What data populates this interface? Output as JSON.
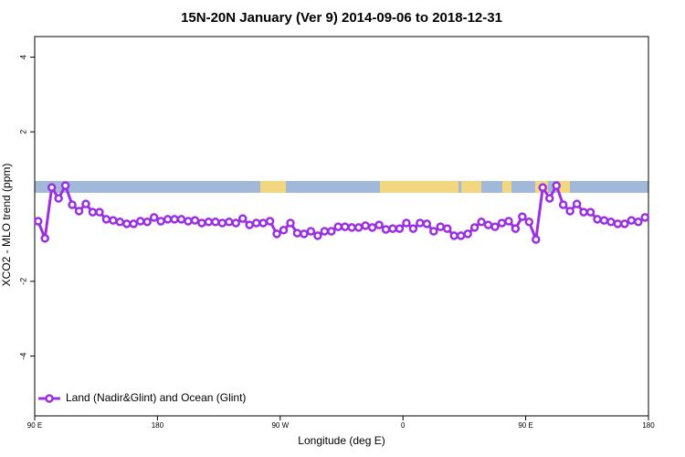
{
  "chart_data": {
    "type": "line",
    "title": "15N-20N January (Ver 9)   2014-09-06 to 2018-12-31",
    "x_label": "Longitude (deg E)",
    "y_label": "XCO2 - MLO trend (ppm)",
    "xlim": [
      90,
      540
    ],
    "ylim": [
      -5.6,
      4.55
    ],
    "xticks": [
      {
        "value": 90,
        "label": "90 E"
      },
      180,
      {
        "value": 270,
        "label": "90 W"
      },
      {
        "value": 360,
        "label": "0"
      },
      {
        "value": 450,
        "label": "90 E"
      },
      {
        "value": 540,
        "label": "180"
      }
    ],
    "yticks": [
      4,
      2,
      -2,
      -4
    ],
    "legend": "bottom-left",
    "x": [
      92.5,
      97.5,
      102.5,
      107.5,
      112.5,
      117.5,
      122.5,
      127.5,
      132.5,
      137.5,
      142.5,
      147.5,
      152.5,
      157.5,
      162.5,
      167.5,
      172.5,
      177.5,
      182.5,
      187.5,
      192.5,
      197.5,
      202.5,
      207.5,
      212.5,
      217.5,
      222.5,
      227.5,
      232.5,
      237.5,
      242.5,
      247.5,
      252.5,
      257.5,
      262.5,
      267.5,
      272.5,
      277.5,
      282.5,
      287.5,
      292.5,
      297.5,
      302.5,
      307.5,
      312.5,
      317.5,
      322.5,
      327.5,
      332.5,
      337.5,
      342.5,
      347.5,
      352.5,
      357.5,
      362.5,
      367.5,
      372.5,
      377.5,
      382.5,
      387.5,
      392.5,
      397.5,
      402.5,
      407.5,
      412.5,
      417.5,
      422.5,
      427.5,
      432.5,
      437.5,
      442.5,
      447.5,
      452.5,
      457.5,
      462.5,
      467.5,
      472.5,
      477.5,
      482.5,
      487.5,
      492.5,
      497.5,
      502.5,
      507.5,
      512.5,
      517.5,
      522.5,
      527.5,
      532.5,
      537.5
    ],
    "series": [
      {
        "name": "Land (Nadir&Glint) and Ocean (Glint)",
        "color": "#9b30e0",
        "values": [
          -0.39,
          -0.85,
          0.51,
          0.22,
          0.56,
          0.05,
          -0.12,
          0.07,
          -0.15,
          -0.15,
          -0.34,
          -0.37,
          -0.41,
          -0.46,
          -0.46,
          -0.39,
          -0.41,
          -0.29,
          -0.39,
          -0.34,
          -0.34,
          -0.34,
          -0.39,
          -0.37,
          -0.44,
          -0.41,
          -0.41,
          -0.44,
          -0.41,
          -0.44,
          -0.32,
          -0.49,
          -0.44,
          -0.44,
          -0.39,
          -0.73,
          -0.63,
          -0.44,
          -0.71,
          -0.73,
          -0.66,
          -0.78,
          -0.66,
          -0.66,
          -0.54,
          -0.54,
          -0.56,
          -0.56,
          -0.51,
          -0.56,
          -0.49,
          -0.61,
          -0.59,
          -0.59,
          -0.44,
          -0.59,
          -0.44,
          -0.46,
          -0.66,
          -0.54,
          -0.59,
          -0.78,
          -0.78,
          -0.73,
          -0.56,
          -0.41,
          -0.49,
          -0.54,
          -0.44,
          -0.39,
          -0.59,
          -0.27,
          -0.41,
          -0.88,
          0.51,
          0.22,
          0.56,
          0.05,
          -0.12,
          0.07,
          -0.15,
          -0.15,
          -0.34,
          -0.37,
          -0.41,
          -0.46,
          -0.46,
          -0.37,
          -0.41,
          -0.29
        ]
      }
    ]
  }
}
